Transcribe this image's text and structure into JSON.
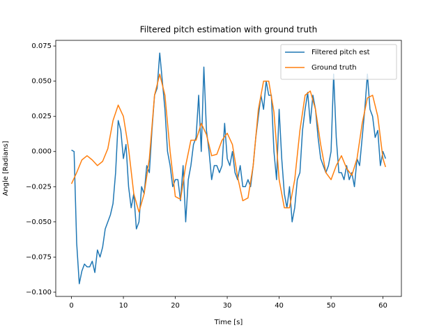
{
  "chart_data": {
    "type": "line",
    "title": "Filtered pitch estimation with ground truth",
    "x_label": "Time [s]",
    "y_label": "Angle [Radians]",
    "xlim": [
      -3.03,
      63.55
    ],
    "ylim": [
      -0.103,
      0.079
    ],
    "xticks": [
      0,
      10,
      20,
      30,
      40,
      50,
      60
    ],
    "yticks": [
      {
        "value": -0.1,
        "label": "−0.100"
      },
      {
        "value": -0.075,
        "label": "−0.075"
      },
      {
        "value": -0.05,
        "label": "−0.050"
      },
      {
        "value": -0.025,
        "label": "−0.025"
      },
      {
        "value": 0,
        "label": "0.000"
      },
      {
        "value": 0.025,
        "label": "0.025"
      },
      {
        "value": 0.05,
        "label": "0.050"
      },
      {
        "value": 0.075,
        "label": "0.075"
      }
    ],
    "legend": "upper right",
    "series": [
      {
        "name": "Filtered pitch est",
        "color": "#1f77b4",
        "x": [
          0,
          0.5,
          1,
          1.5,
          2,
          2.5,
          3,
          3.5,
          4,
          4.5,
          5,
          5.5,
          6,
          6.5,
          7,
          7.5,
          8,
          8.5,
          9,
          9.5,
          10,
          10.5,
          11,
          11.5,
          12,
          12.5,
          13,
          13.5,
          14,
          14.5,
          15,
          15.5,
          16,
          16.5,
          17,
          17.5,
          18,
          18.5,
          19,
          19.5,
          20,
          20.5,
          21,
          21.5,
          22,
          22.5,
          23,
          23.5,
          24,
          24.5,
          25,
          25.5,
          26,
          26.5,
          27,
          27.5,
          28,
          28.5,
          29,
          29.5,
          30,
          30.5,
          31,
          31.5,
          32,
          32.5,
          33,
          33.5,
          34,
          34.5,
          35,
          35.5,
          36,
          36.5,
          37,
          37.5,
          38,
          38.5,
          39,
          39.5,
          40,
          40.5,
          41,
          41.5,
          42,
          42.5,
          43,
          43.5,
          44,
          44.5,
          45,
          45.5,
          46,
          46.5,
          47,
          47.5,
          48,
          48.5,
          49,
          49.5,
          50,
          50.5,
          51,
          51.5,
          52,
          52.5,
          53,
          53.5,
          54,
          54.5,
          55,
          55.5,
          56,
          56.5,
          57,
          57.5,
          58,
          58.5,
          59,
          59.5,
          60,
          60.5
        ],
        "values": [
          0.001,
          0,
          -0.065,
          -0.094,
          -0.085,
          -0.08,
          -0.082,
          -0.082,
          -0.078,
          -0.086,
          -0.07,
          -0.075,
          -0.068,
          -0.055,
          -0.05,
          -0.045,
          -0.037,
          -0.015,
          0.022,
          0.015,
          -0.005,
          0.005,
          -0.025,
          -0.04,
          -0.03,
          -0.055,
          -0.05,
          -0.025,
          -0.03,
          -0.01,
          -0.015,
          0.015,
          0.04,
          0.045,
          0.07,
          0.05,
          0.03,
          0,
          -0.01,
          -0.025,
          -0.02,
          -0.02,
          -0.035,
          -0.01,
          -0.05,
          -0.02,
          -0.01,
          0.005,
          0.01,
          0.04,
          0,
          0.06,
          0.015,
          0,
          -0.02,
          -0.01,
          -0.01,
          -0.015,
          -0.01,
          0.02,
          -0.005,
          -0.01,
          0,
          -0.015,
          -0.02,
          -0.01,
          -0.025,
          -0.025,
          -0.02,
          -0.025,
          -0.01,
          0.01,
          0.025,
          0.04,
          0.03,
          0.05,
          0.04,
          0.04,
          0,
          -0.02,
          0.03,
          -0.005,
          -0.03,
          -0.04,
          -0.025,
          -0.05,
          -0.04,
          -0.02,
          -0.015,
          0.015,
          0.03,
          0.042,
          0.02,
          0.04,
          0.03,
          0.01,
          -0.005,
          -0.01,
          -0.015,
          -0.01,
          0,
          0.055,
          0.01,
          -0.015,
          -0.015,
          -0.02,
          -0.01,
          -0.02,
          -0.015,
          -0.025,
          -0.005,
          -0.01,
          0.01,
          0.03,
          0.055,
          0.03,
          0.025,
          0.01,
          0.015,
          -0.01,
          0,
          -0.005
        ]
      },
      {
        "name": "Ground truth",
        "color": "#ff7f0e",
        "x": [
          0,
          1,
          2,
          3,
          4,
          5,
          6,
          7,
          8,
          9,
          10,
          11,
          12,
          13,
          14,
          15,
          16,
          17,
          18,
          19,
          20,
          21,
          22,
          23,
          24,
          25,
          26,
          27,
          28,
          29,
          30,
          31,
          32,
          33,
          34,
          35,
          36,
          37,
          38,
          39,
          40,
          41,
          42,
          43,
          44,
          45,
          46,
          47,
          48,
          49,
          50,
          51,
          52,
          53,
          54,
          55,
          56,
          57,
          58,
          59,
          60,
          60.5
        ],
        "values": [
          -0.023,
          -0.015,
          -0.006,
          -0.003,
          -0.006,
          -0.01,
          -0.007,
          0.002,
          0.022,
          0.033,
          0.025,
          0.002,
          -0.03,
          -0.043,
          -0.03,
          -0.005,
          0.04,
          0.055,
          0.04,
          0,
          -0.032,
          -0.034,
          -0.01,
          0.008,
          0.008,
          0.02,
          0.012,
          -0.003,
          -0.002,
          0.008,
          0.013,
          0.005,
          -0.018,
          -0.035,
          -0.033,
          -0.01,
          0.03,
          0.05,
          0.05,
          0.028,
          -0.02,
          -0.04,
          -0.04,
          -0.02,
          0.015,
          0.04,
          0.043,
          0.03,
          0.005,
          -0.015,
          -0.02,
          -0.01,
          -0.003,
          -0.012,
          -0.017,
          -0.005,
          0.02,
          0.038,
          0.04,
          0.025,
          -0.005,
          -0.011
        ]
      }
    ]
  }
}
